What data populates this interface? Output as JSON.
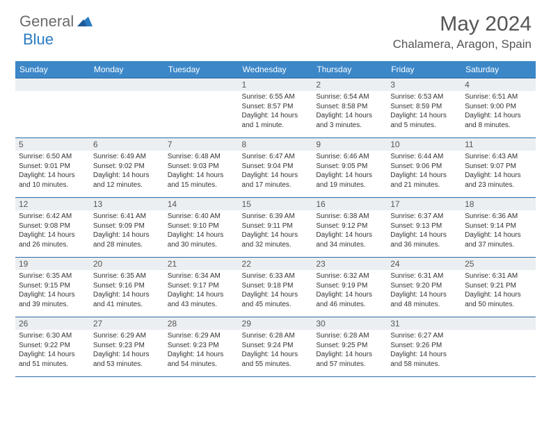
{
  "brand": {
    "part1": "General",
    "part2": "Blue"
  },
  "title": "May 2024",
  "location": "Chalamera, Aragon, Spain",
  "day_headers": [
    "Sunday",
    "Monday",
    "Tuesday",
    "Wednesday",
    "Thursday",
    "Friday",
    "Saturday"
  ],
  "colors": {
    "header_bg": "#3b87c8",
    "header_text": "#ffffff",
    "border": "#2a6aa5",
    "daynum_bg": "#eceff2",
    "logo_gray": "#6b6b6b",
    "logo_blue": "#2a7ac0"
  },
  "weeks": [
    [
      null,
      null,
      null,
      {
        "n": "1",
        "r": "6:55 AM",
        "s": "8:57 PM",
        "d": "14 hours and 1 minute."
      },
      {
        "n": "2",
        "r": "6:54 AM",
        "s": "8:58 PM",
        "d": "14 hours and 3 minutes."
      },
      {
        "n": "3",
        "r": "6:53 AM",
        "s": "8:59 PM",
        "d": "14 hours and 5 minutes."
      },
      {
        "n": "4",
        "r": "6:51 AM",
        "s": "9:00 PM",
        "d": "14 hours and 8 minutes."
      }
    ],
    [
      {
        "n": "5",
        "r": "6:50 AM",
        "s": "9:01 PM",
        "d": "14 hours and 10 minutes."
      },
      {
        "n": "6",
        "r": "6:49 AM",
        "s": "9:02 PM",
        "d": "14 hours and 12 minutes."
      },
      {
        "n": "7",
        "r": "6:48 AM",
        "s": "9:03 PM",
        "d": "14 hours and 15 minutes."
      },
      {
        "n": "8",
        "r": "6:47 AM",
        "s": "9:04 PM",
        "d": "14 hours and 17 minutes."
      },
      {
        "n": "9",
        "r": "6:46 AM",
        "s": "9:05 PM",
        "d": "14 hours and 19 minutes."
      },
      {
        "n": "10",
        "r": "6:44 AM",
        "s": "9:06 PM",
        "d": "14 hours and 21 minutes."
      },
      {
        "n": "11",
        "r": "6:43 AM",
        "s": "9:07 PM",
        "d": "14 hours and 23 minutes."
      }
    ],
    [
      {
        "n": "12",
        "r": "6:42 AM",
        "s": "9:08 PM",
        "d": "14 hours and 26 minutes."
      },
      {
        "n": "13",
        "r": "6:41 AM",
        "s": "9:09 PM",
        "d": "14 hours and 28 minutes."
      },
      {
        "n": "14",
        "r": "6:40 AM",
        "s": "9:10 PM",
        "d": "14 hours and 30 minutes."
      },
      {
        "n": "15",
        "r": "6:39 AM",
        "s": "9:11 PM",
        "d": "14 hours and 32 minutes."
      },
      {
        "n": "16",
        "r": "6:38 AM",
        "s": "9:12 PM",
        "d": "14 hours and 34 minutes."
      },
      {
        "n": "17",
        "r": "6:37 AM",
        "s": "9:13 PM",
        "d": "14 hours and 36 minutes."
      },
      {
        "n": "18",
        "r": "6:36 AM",
        "s": "9:14 PM",
        "d": "14 hours and 37 minutes."
      }
    ],
    [
      {
        "n": "19",
        "r": "6:35 AM",
        "s": "9:15 PM",
        "d": "14 hours and 39 minutes."
      },
      {
        "n": "20",
        "r": "6:35 AM",
        "s": "9:16 PM",
        "d": "14 hours and 41 minutes."
      },
      {
        "n": "21",
        "r": "6:34 AM",
        "s": "9:17 PM",
        "d": "14 hours and 43 minutes."
      },
      {
        "n": "22",
        "r": "6:33 AM",
        "s": "9:18 PM",
        "d": "14 hours and 45 minutes."
      },
      {
        "n": "23",
        "r": "6:32 AM",
        "s": "9:19 PM",
        "d": "14 hours and 46 minutes."
      },
      {
        "n": "24",
        "r": "6:31 AM",
        "s": "9:20 PM",
        "d": "14 hours and 48 minutes."
      },
      {
        "n": "25",
        "r": "6:31 AM",
        "s": "9:21 PM",
        "d": "14 hours and 50 minutes."
      }
    ],
    [
      {
        "n": "26",
        "r": "6:30 AM",
        "s": "9:22 PM",
        "d": "14 hours and 51 minutes."
      },
      {
        "n": "27",
        "r": "6:29 AM",
        "s": "9:23 PM",
        "d": "14 hours and 53 minutes."
      },
      {
        "n": "28",
        "r": "6:29 AM",
        "s": "9:23 PM",
        "d": "14 hours and 54 minutes."
      },
      {
        "n": "29",
        "r": "6:28 AM",
        "s": "9:24 PM",
        "d": "14 hours and 55 minutes."
      },
      {
        "n": "30",
        "r": "6:28 AM",
        "s": "9:25 PM",
        "d": "14 hours and 57 minutes."
      },
      {
        "n": "31",
        "r": "6:27 AM",
        "s": "9:26 PM",
        "d": "14 hours and 58 minutes."
      },
      null
    ]
  ],
  "labels": {
    "sunrise": "Sunrise:",
    "sunset": "Sunset:",
    "daylight": "Daylight:"
  }
}
